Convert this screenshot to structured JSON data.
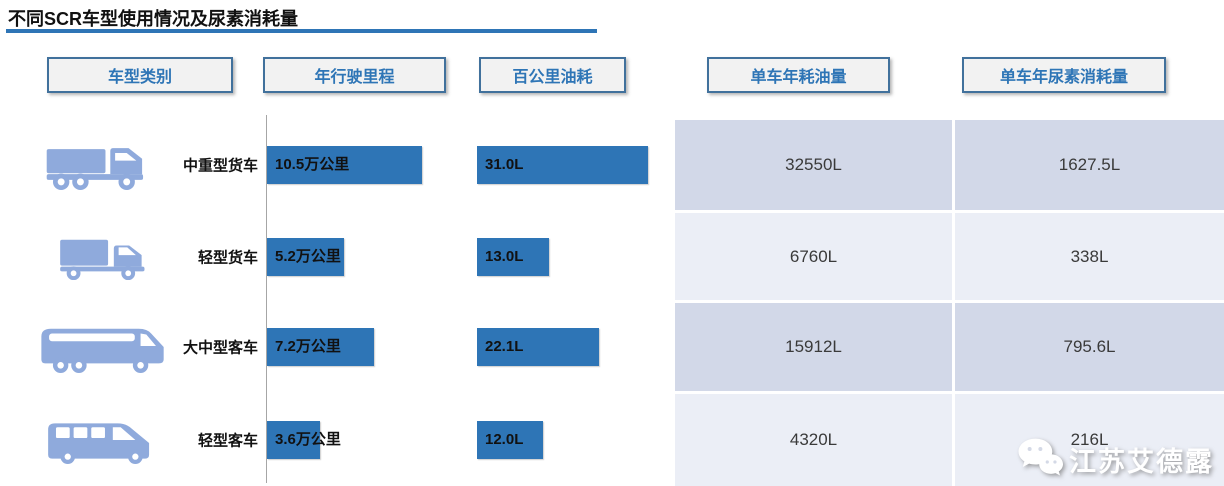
{
  "title": "不同SCR车型使用情况及尿素消耗量",
  "colors": {
    "accent": "#2E75B6",
    "icon_blue": "#8FAADC",
    "cell_dark": "#D2D8E8",
    "cell_light": "#EBEEF6",
    "header_fill": "#F2F2F2",
    "header_border": "#41719C"
  },
  "headers": [
    "车型类别",
    "年行驶里程",
    "百公里油耗",
    "单车年耗油量",
    "单车年尿素消耗量"
  ],
  "watermark": {
    "icon": "wechat-icon",
    "text": "江苏艾德露"
  },
  "chart_data": {
    "type": "bar",
    "title": "不同SCR车型使用情况及尿素消耗量",
    "categories": [
      "中重型货车",
      "轻型货车",
      "大中型客车",
      "轻型客车"
    ],
    "icons": [
      "heavy-truck-icon",
      "light-truck-icon",
      "coach-bus-icon",
      "minibus-icon"
    ],
    "series": [
      {
        "name": "年行驶里程",
        "unit": "万公里",
        "values": [
          10.5,
          5.2,
          7.2,
          3.6
        ],
        "labels": [
          "10.5万公里",
          "5.2万公里",
          "7.2万公里",
          "3.6万公里"
        ],
        "display": "bar"
      },
      {
        "name": "百公里油耗",
        "unit": "L",
        "values": [
          31.0,
          13.0,
          22.1,
          12.0
        ],
        "labels": [
          "31.0L",
          "13.0L",
          "22.1L",
          "12.0L"
        ],
        "display": "bar"
      },
      {
        "name": "单车年耗油量",
        "unit": "L",
        "values": [
          32550,
          6760,
          15912,
          4320
        ],
        "labels": [
          "32550L",
          "6760L",
          "15912L",
          "4320L"
        ],
        "display": "table"
      },
      {
        "name": "单车年尿素消耗量",
        "unit": "L",
        "values": [
          1627.5,
          338,
          795.6,
          216
        ],
        "labels": [
          "1627.5L",
          "338L",
          "795.6L",
          "216L"
        ],
        "display": "table"
      }
    ],
    "layout_hints": {
      "bars_grow_right": true,
      "grid": false,
      "legend": "none",
      "row_striping": "alternating light/dark lavender"
    }
  }
}
